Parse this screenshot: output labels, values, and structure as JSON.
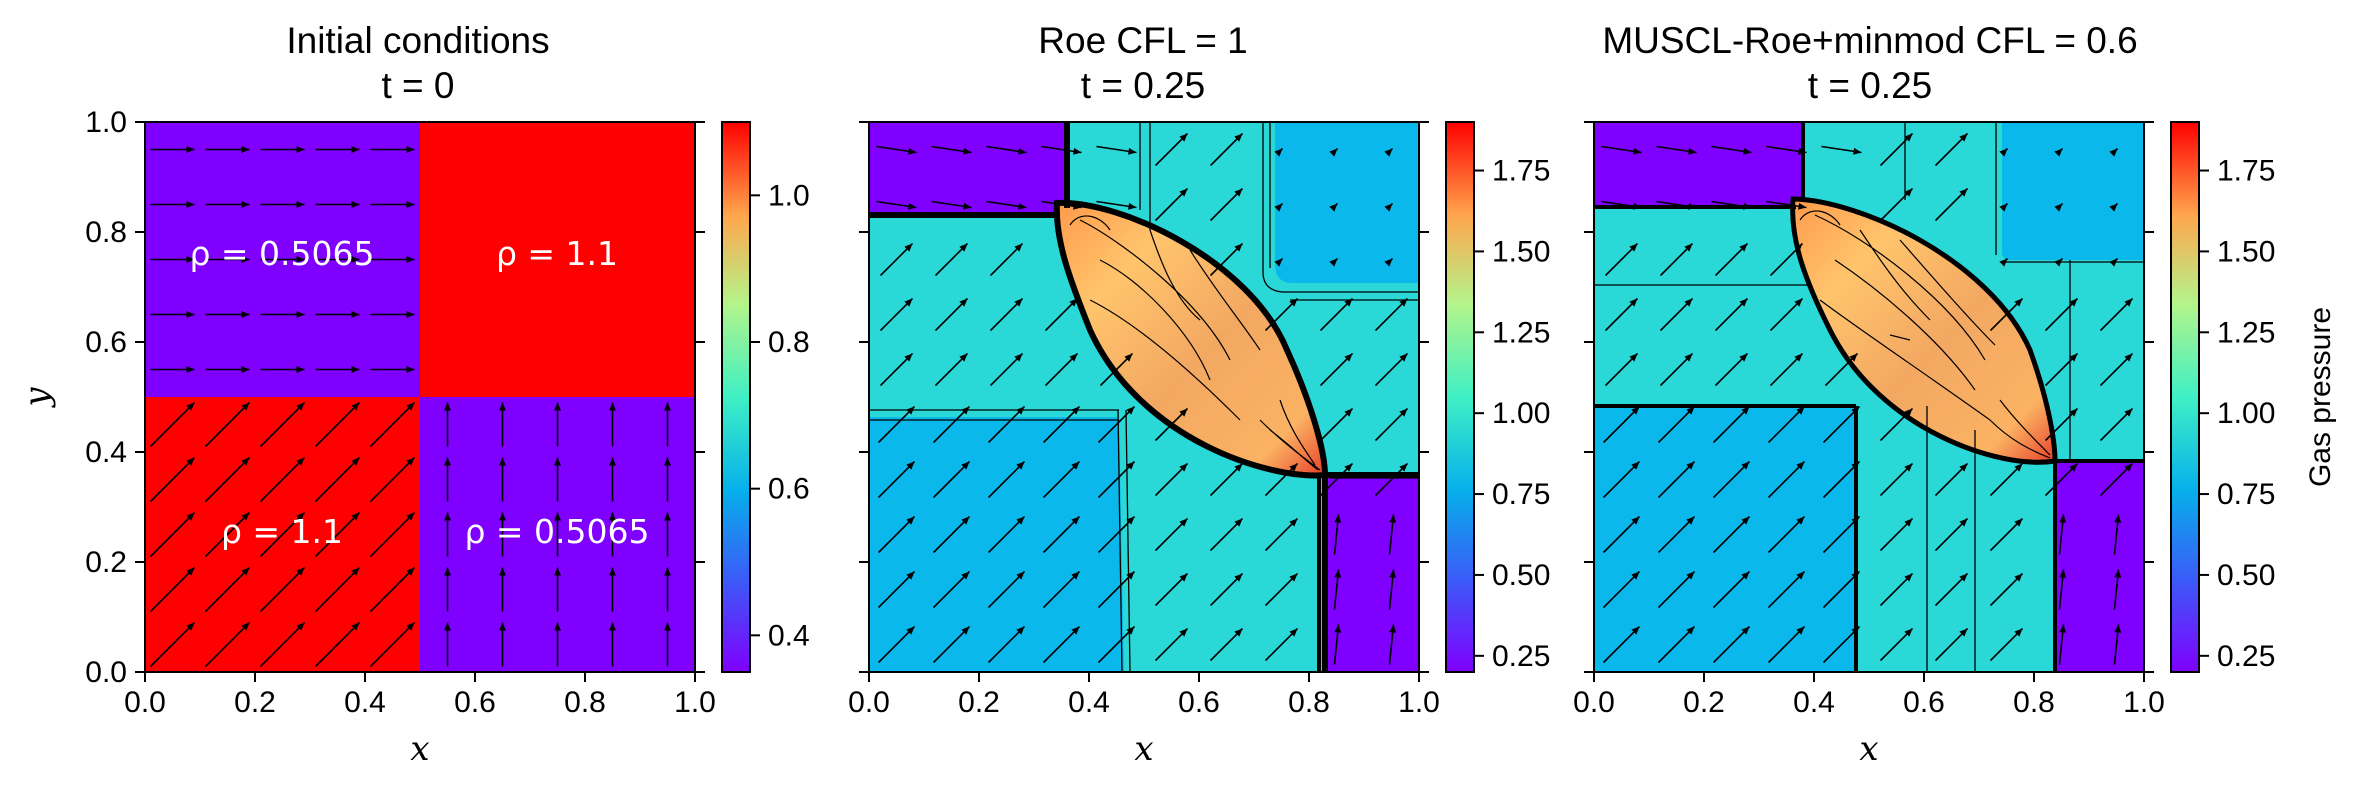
{
  "panels": [
    {
      "title_line1": "Initial conditions",
      "title_line2": "t = 0",
      "xlabel": "x",
      "ylabel": "y",
      "xticks": [
        "0.0",
        "0.2",
        "0.4",
        "0.6",
        "0.8",
        "1.0"
      ],
      "yticks": [
        "0.0",
        "0.2",
        "0.4",
        "0.6",
        "0.8",
        "1.0"
      ],
      "annotations": [
        "ρ = 0.5065",
        "ρ = 1.1",
        "ρ = 1.1",
        "ρ = 0.5065"
      ],
      "colorbar_ticks": [
        "0.4",
        "0.6",
        "0.8",
        "1.0"
      ],
      "colorbar_range": [
        0.35,
        1.1
      ]
    },
    {
      "title_line1": "Roe CFL = 1",
      "title_line2": "t = 0.25",
      "xlabel": "x",
      "xticks": [
        "0.0",
        "0.2",
        "0.4",
        "0.6",
        "0.8",
        "1.0"
      ],
      "colorbar_ticks": [
        "0.25",
        "0.50",
        "0.75",
        "1.00",
        "1.25",
        "1.50",
        "1.75"
      ],
      "colorbar_range": [
        0.2,
        1.9
      ]
    },
    {
      "title_line1": "MUSCL-Roe+minmod CFL = 0.6",
      "title_line2": "t = 0.25",
      "xlabel": "x",
      "xticks": [
        "0.0",
        "0.2",
        "0.4",
        "0.6",
        "0.8",
        "1.0"
      ],
      "colorbar_ticks": [
        "0.25",
        "0.50",
        "0.75",
        "1.00",
        "1.25",
        "1.50",
        "1.75"
      ],
      "colorbar_range": [
        0.2,
        1.9
      ],
      "colorbar_label": "Gas pressure"
    }
  ],
  "chart_data": [
    {
      "type": "heatmap",
      "title": "Initial conditions t = 0",
      "xlabel": "x",
      "ylabel": "y",
      "xlim": [
        0,
        1
      ],
      "ylim": [
        0,
        1
      ],
      "quadrants": [
        {
          "x": [
            0,
            0.5
          ],
          "y": [
            0.5,
            1
          ],
          "rho": 0.5065
        },
        {
          "x": [
            0.5,
            1
          ],
          "y": [
            0.5,
            1
          ],
          "rho": 1.1
        },
        {
          "x": [
            0,
            0.5
          ],
          "y": [
            0,
            0.5
          ],
          "rho": 1.1
        },
        {
          "x": [
            0.5,
            1
          ],
          "y": [
            0,
            0.5
          ],
          "rho": 0.5065
        }
      ],
      "colorbar_range": [
        0.35,
        1.1
      ]
    },
    {
      "type": "heatmap",
      "title": "Roe CFL = 1 t = 0.25",
      "xlabel": "x",
      "xlim": [
        0,
        1
      ],
      "ylim": [
        0,
        1
      ],
      "colorbar_range": [
        0.2,
        1.9
      ],
      "regions": [
        {
          "name": "top-left",
          "value": 0.25
        },
        {
          "name": "top-right",
          "value": 0.55
        },
        {
          "name": "left-band",
          "value": 0.7
        },
        {
          "name": "bottom-left",
          "value": 0.55
        },
        {
          "name": "bottom-right",
          "value": 0.25
        },
        {
          "name": "central-lens",
          "value": 1.5
        }
      ]
    },
    {
      "type": "heatmap",
      "title": "MUSCL-Roe+minmod CFL = 0.6 t = 0.25",
      "xlabel": "x",
      "xlim": [
        0,
        1
      ],
      "ylim": [
        0,
        1
      ],
      "colorbar_range": [
        0.2,
        1.9
      ],
      "colorbar_label": "Gas pressure",
      "regions": [
        {
          "name": "top-left",
          "value": 0.25
        },
        {
          "name": "top-right",
          "value": 0.55
        },
        {
          "name": "left-band",
          "value": 0.7
        },
        {
          "name": "bottom-left",
          "value": 0.55
        },
        {
          "name": "bottom-right",
          "value": 0.25
        },
        {
          "name": "central-lens",
          "value": 1.5
        }
      ]
    }
  ],
  "colors": {
    "purple": "#7f00ff",
    "red": "#ff0000",
    "cyan": "#2ad8d8",
    "blue": "#0ab8ec",
    "lens_center": "#f5a95e",
    "lens_edge": "#ffd27a"
  }
}
